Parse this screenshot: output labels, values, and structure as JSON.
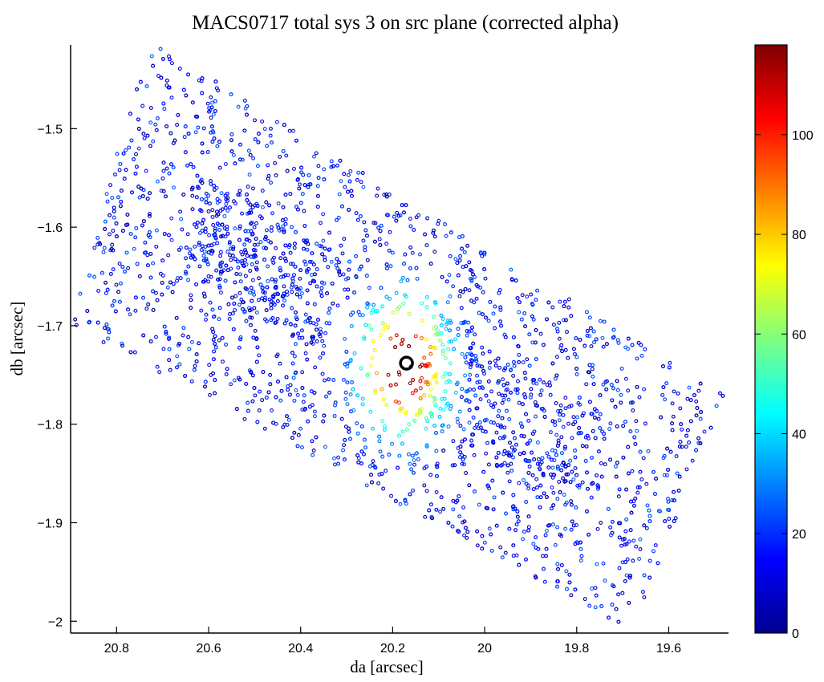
{
  "chart_data": {
    "type": "scatter",
    "title": "MACS0717 total sys 3 on src plane (corrected alpha)",
    "xlabel": "da [arcsec]",
    "ylabel": "db [arcsec]",
    "xlim": [
      20.9,
      19.47
    ],
    "ylim": [
      -2.012,
      -1.415
    ],
    "x_reversed": true,
    "xticks": [
      20.8,
      20.6,
      20.4,
      20.2,
      20.0,
      19.8,
      19.6
    ],
    "xtick_labels": [
      "20.8",
      "20.6",
      "20.4",
      "20.2",
      "20",
      "19.8",
      "19.6"
    ],
    "yticks": [
      -1.5,
      -1.6,
      -1.7,
      -1.8,
      -1.9,
      -2.0
    ],
    "ytick_labels": [
      "-1.5",
      "-1.6",
      "-1.7",
      "-1.8",
      "-1.9",
      "-2"
    ],
    "grid": false,
    "marker": "small open circles",
    "colormap": "jet",
    "colorbar": {
      "range": [
        0,
        118
      ],
      "ticks": [
        0,
        20,
        40,
        60,
        80,
        100
      ],
      "tick_labels": [
        "0",
        "20",
        "40",
        "60",
        "80",
        "100"
      ]
    },
    "density_peak": {
      "x": 20.175,
      "y": -1.74,
      "value": 115
    },
    "highlight_circle": {
      "x": 20.17,
      "y": -1.738,
      "radius_arcsec": 0.013
    },
    "point_region": {
      "vertices": [
        [
          20.9,
          -1.7
        ],
        [
          20.73,
          -1.41
        ],
        [
          19.48,
          -1.77
        ],
        [
          19.68,
          -2.01
        ]
      ]
    },
    "values_note": ""
  }
}
